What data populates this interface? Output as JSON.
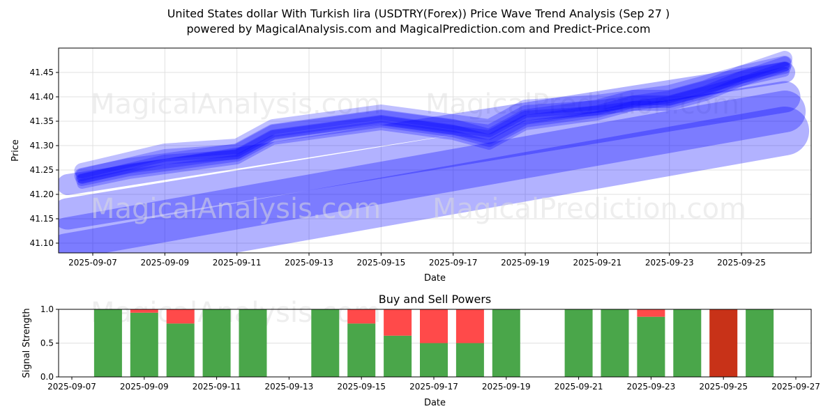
{
  "title_line1": "United States dollar With Turkish lira (USDTRY(Forex)) Price Wave Trend Analysis (Sep 27 )",
  "title_line2": "powered by MagicalAnalysis.com and MagicalPrediction.com and Predict-Price.com",
  "watermarks": [
    "MagicalAnalysis.com",
    "MagicalPrediction.com"
  ],
  "colors": {
    "band": "#0000ff",
    "buy": "#4aa64a",
    "sell": "#ff4a4a",
    "strong_sell": "#c83218"
  },
  "chart_data": [
    {
      "type": "line",
      "title": "",
      "xlabel": "Date",
      "ylabel": "Price",
      "ylim": [
        41.08,
        41.5
      ],
      "xlim": [
        "2025-09-06",
        "2025-09-27"
      ],
      "yticks": [
        "41.10",
        "41.15",
        "41.20",
        "41.25",
        "41.30",
        "41.35",
        "41.40",
        "41.45"
      ],
      "xticks": [
        "2025-09-07",
        "2025-09-09",
        "2025-09-11",
        "2025-09-13",
        "2025-09-15",
        "2025-09-17",
        "2025-09-19",
        "2025-09-21",
        "2025-09-23",
        "2025-09-25"
      ],
      "series": [
        {
          "name": "wave-main",
          "x": [
            6.7,
            8,
            9,
            10,
            11,
            12,
            13,
            14,
            15,
            16,
            17,
            18,
            19,
            20,
            21,
            22,
            23,
            24,
            25,
            26.2
          ],
          "values": [
            41.23,
            41.25,
            41.26,
            41.27,
            41.28,
            41.32,
            41.33,
            41.34,
            41.35,
            41.34,
            41.33,
            41.31,
            41.35,
            41.36,
            41.37,
            41.39,
            41.39,
            41.41,
            41.44,
            41.46
          ]
        },
        {
          "name": "wave-upper",
          "x": [
            6.7,
            9,
            11,
            12,
            14,
            15,
            17,
            18,
            19,
            21,
            23,
            25,
            26.2
          ],
          "values": [
            41.24,
            41.28,
            41.29,
            41.33,
            41.35,
            41.36,
            41.34,
            41.33,
            41.37,
            41.38,
            41.4,
            41.44,
            41.47
          ]
        },
        {
          "name": "trend-1",
          "x": [
            6.3,
            26.2
          ],
          "values": [
            41.22,
            41.45
          ]
        },
        {
          "name": "trend-2",
          "x": [
            6.3,
            26.2
          ],
          "values": [
            41.16,
            41.4
          ]
        },
        {
          "name": "trend-3",
          "x": [
            6.3,
            26.2
          ],
          "values": [
            41.11,
            41.37
          ]
        },
        {
          "name": "trend-4",
          "x": [
            6.3,
            26.2
          ],
          "values": [
            41.07,
            41.33
          ]
        }
      ]
    },
    {
      "type": "bar",
      "title": "Buy and Sell Powers",
      "xlabel": "Date",
      "ylabel": "Signal Strength",
      "ylim": [
        0,
        1
      ],
      "yticks": [
        "0.0",
        "0.5",
        "1.0"
      ],
      "xticks": [
        "2025-09-07",
        "2025-09-09",
        "2025-09-11",
        "2025-09-13",
        "2025-09-15",
        "2025-09-17",
        "2025-09-19",
        "2025-09-21",
        "2025-09-23",
        "2025-09-25",
        "2025-09-27"
      ],
      "days": [
        8,
        9,
        10,
        11,
        12,
        14,
        15,
        16,
        17,
        18,
        19,
        21,
        22,
        23,
        24,
        25,
        26
      ],
      "buy": [
        1,
        0.95,
        0.79,
        1,
        1,
        1,
        0.79,
        0.61,
        0.5,
        0.5,
        1,
        1,
        1,
        0.89,
        1,
        0,
        1
      ],
      "sell": [
        0,
        0.05,
        0.21,
        0,
        0,
        0,
        0.21,
        0.39,
        0.5,
        0.5,
        0,
        0,
        0,
        0.11,
        0,
        1,
        0
      ]
    }
  ]
}
